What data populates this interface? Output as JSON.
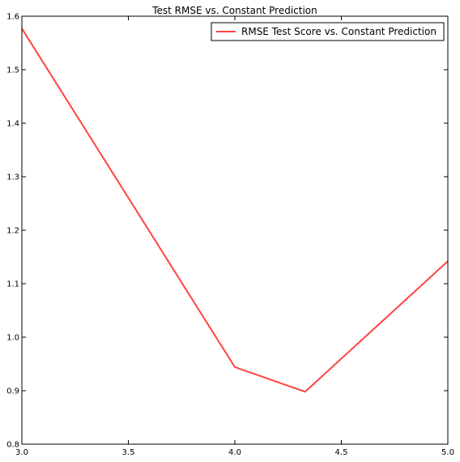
{
  "chart_data": {
    "type": "line",
    "title": "Test RMSE vs. Constant Prediction",
    "xlabel": "",
    "ylabel": "",
    "xlim": [
      3.0,
      5.0
    ],
    "ylim": [
      0.8,
      1.6
    ],
    "x_ticks": [
      "3.0",
      "3.5",
      "4.0",
      "4.5",
      "5.0"
    ],
    "y_ticks": [
      "0.8",
      "0.9",
      "1.0",
      "1.1",
      "1.2",
      "1.3",
      "1.4",
      "1.5",
      "1.6"
    ],
    "grid": false,
    "legend_position": "top-right",
    "series": [
      {
        "name": "RMSE Test Score vs. Constant Prediction",
        "color": "#ff4444",
        "x": [
          3.0,
          4.0,
          4.33,
          5.0
        ],
        "y": [
          1.577,
          0.944,
          0.898,
          1.142
        ]
      }
    ]
  }
}
